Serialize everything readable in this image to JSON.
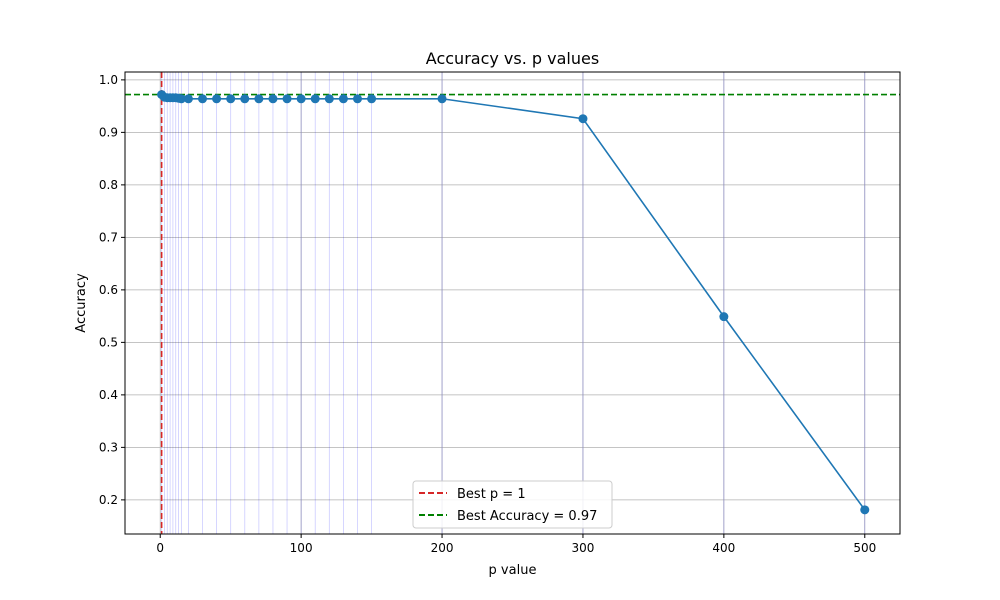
{
  "chart_data": {
    "type": "line",
    "title": "Accuracy vs. p values",
    "xlabel": "p value",
    "ylabel": "Accuracy",
    "xlim": [
      -25,
      525
    ],
    "ylim": [
      0.135,
      1.015
    ],
    "xticks": [
      0,
      100,
      200,
      300,
      400,
      500
    ],
    "xtick_labels": [
      "0",
      "100",
      "200",
      "300",
      "400",
      "500"
    ],
    "yticks": [
      0.2,
      0.3,
      0.4,
      0.5,
      0.6,
      0.7,
      0.8,
      0.9,
      1.0
    ],
    "ytick_labels": [
      "0.2",
      "0.3",
      "0.4",
      "0.5",
      "0.6",
      "0.7",
      "0.8",
      "0.9",
      "1.0"
    ],
    "grid": true,
    "legend_position": "bottom-center",
    "series": [
      {
        "x": [
          1,
          3,
          5,
          7,
          9,
          11,
          13,
          15,
          20,
          30,
          40,
          50,
          60,
          70,
          80,
          90,
          100,
          110,
          120,
          130,
          140,
          150,
          200,
          300,
          400,
          500
        ],
        "y": [
          0.972,
          0.967,
          0.966,
          0.966,
          0.966,
          0.966,
          0.965,
          0.964,
          0.964,
          0.964,
          0.964,
          0.964,
          0.964,
          0.964,
          0.964,
          0.964,
          0.964,
          0.964,
          0.964,
          0.964,
          0.964,
          0.964,
          0.964,
          0.926,
          0.549,
          0.181
        ],
        "color": "#1f77b4",
        "marker": "circle"
      }
    ],
    "vertical_marker_lines": {
      "x": [
        1,
        3,
        5,
        7,
        9,
        11,
        13,
        15,
        20,
        30,
        40,
        50,
        60,
        70,
        80,
        90,
        100,
        110,
        120,
        130,
        140,
        150,
        200,
        300,
        400,
        500
      ],
      "color": "#0000ff"
    },
    "reference_lines": [
      {
        "orientation": "vertical",
        "value": 1,
        "color": "#d62728",
        "style": "dashed"
      },
      {
        "orientation": "horizontal",
        "value": 0.972,
        "color": "#008000",
        "style": "dashed"
      }
    ],
    "legend": [
      {
        "label": "Best p = 1",
        "color": "#d62728",
        "style": "dashed"
      },
      {
        "label": "Best Accuracy = 0.97",
        "color": "#008000",
        "style": "dashed"
      }
    ]
  }
}
